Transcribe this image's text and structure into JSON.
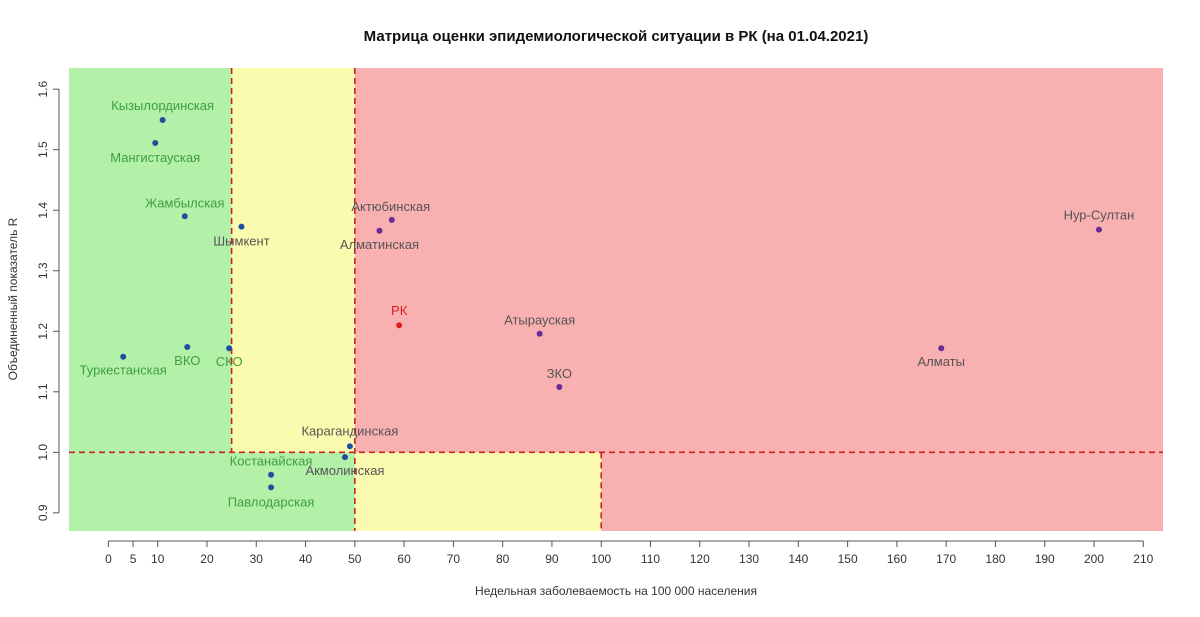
{
  "chart_data": {
    "type": "scatter",
    "title": "Матрица оценки эпидемиологической ситуации в РК (на 01.04.2021)",
    "xlabel": "Недельная заболеваемость на 100 000 населения",
    "ylabel": "Объединенный показатель R",
    "xlim": [
      -8,
      214
    ],
    "ylim": [
      0.87,
      1.635
    ],
    "xticks": [
      0,
      5,
      10,
      20,
      30,
      40,
      50,
      60,
      70,
      80,
      90,
      100,
      110,
      120,
      130,
      140,
      150,
      160,
      170,
      180,
      190,
      200,
      210
    ],
    "yticks": [
      0.9,
      1.0,
      1.1,
      1.2,
      1.3,
      1.4,
      1.5,
      1.6
    ],
    "thresholds": {
      "x": [
        25,
        50,
        100
      ],
      "y": [
        1.0
      ]
    },
    "zones": [
      {
        "x0": -8,
        "x1": 25,
        "y0": 1.0,
        "y1": 1.635,
        "color": "#b3f0a8"
      },
      {
        "x0": 25,
        "x1": 50,
        "y0": 1.0,
        "y1": 1.635,
        "color": "#fbfbb0"
      },
      {
        "x0": 50,
        "x1": 214,
        "y0": 1.0,
        "y1": 1.635,
        "color": "#f9b0b0"
      },
      {
        "x0": -8,
        "x1": 50,
        "y0": 0.87,
        "y1": 1.0,
        "color": "#b3f0a8"
      },
      {
        "x0": 50,
        "x1": 100,
        "y0": 0.87,
        "y1": 1.0,
        "color": "#fbfbb0"
      },
      {
        "x0": 100,
        "x1": 214,
        "y0": 0.87,
        "y1": 1.0,
        "color": "#f9b0b0"
      }
    ],
    "colors": {
      "green_label": "#3f9f3f",
      "dark_label": "#555555",
      "rk": "#e02020",
      "threshold": "#cc2222",
      "point_green": "#1f4fa0",
      "point_red": "#6a2a9a"
    },
    "points": [
      {
        "name": "Кызылординская",
        "x": 11,
        "y": 1.549,
        "zone": "green",
        "anchor": "middle",
        "dx": 0,
        "dy": -10
      },
      {
        "name": "Мангистауская",
        "x": 9.5,
        "y": 1.511,
        "zone": "green",
        "anchor": "middle",
        "dx": 0,
        "dy": 19
      },
      {
        "name": "Жамбылская",
        "x": 15.5,
        "y": 1.39,
        "zone": "green",
        "anchor": "middle",
        "dx": 0,
        "dy": -9
      },
      {
        "name": "Шымкент",
        "x": 27,
        "y": 1.373,
        "zone": "yellow",
        "anchor": "middle",
        "dx": 0,
        "dy": 19
      },
      {
        "name": "Туркестанская",
        "x": 3,
        "y": 1.158,
        "zone": "green",
        "anchor": "middle",
        "dx": 0,
        "dy": 18
      },
      {
        "name": "ВКО",
        "x": 16,
        "y": 1.174,
        "zone": "green",
        "anchor": "middle",
        "dx": 0,
        "dy": 18
      },
      {
        "name": "СКО",
        "x": 24.5,
        "y": 1.172,
        "zone": "green",
        "anchor": "middle",
        "dx": 0,
        "dy": 18
      },
      {
        "name": "Актюбинская",
        "x": 57.5,
        "y": 1.384,
        "zone": "red",
        "anchor": "middle",
        "dx": -1,
        "dy": -9
      },
      {
        "name": "Алматинская",
        "x": 55,
        "y": 1.366,
        "zone": "red",
        "anchor": "middle",
        "dx": 0,
        "dy": 18
      },
      {
        "name": "РК",
        "x": 59,
        "y": 1.21,
        "zone": "rk",
        "anchor": "middle",
        "dx": 0,
        "dy": -10
      },
      {
        "name": "Атырауская",
        "x": 87.5,
        "y": 1.196,
        "zone": "red",
        "anchor": "middle",
        "dx": 0,
        "dy": -9
      },
      {
        "name": "ЗКО",
        "x": 91.5,
        "y": 1.108,
        "zone": "red",
        "anchor": "middle",
        "dx": 0,
        "dy": -9
      },
      {
        "name": "Алматы",
        "x": 169,
        "y": 1.172,
        "zone": "red",
        "anchor": "middle",
        "dx": 0,
        "dy": 18
      },
      {
        "name": "Нур-Султан",
        "x": 201,
        "y": 1.368,
        "zone": "red",
        "anchor": "middle",
        "dx": 0,
        "dy": -10
      },
      {
        "name": "Карагандинская",
        "x": 49,
        "y": 1.01,
        "zone": "dark",
        "anchor": "middle",
        "dx": 0,
        "dy": -11
      },
      {
        "name": "Акмолинская",
        "x": 48,
        "y": 0.992,
        "zone": "dark",
        "anchor": "middle",
        "dx": 0,
        "dy": 18
      },
      {
        "name": "Костанайская",
        "x": 33,
        "y": 0.963,
        "zone": "green",
        "anchor": "middle",
        "dx": 0,
        "dy": -9
      },
      {
        "name": "Павлодарская",
        "x": 33,
        "y": 0.942,
        "zone": "green",
        "anchor": "middle",
        "dx": 0,
        "dy": 19
      }
    ]
  }
}
